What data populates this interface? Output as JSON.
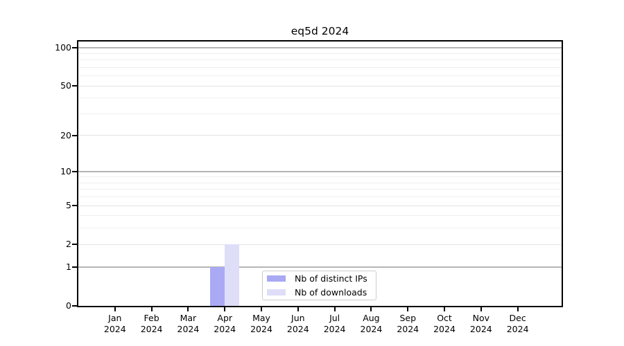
{
  "chart_data": {
    "type": "bar",
    "title": "eq5d 2024",
    "categories": [
      {
        "month": "Jan",
        "year": "2024"
      },
      {
        "month": "Feb",
        "year": "2024"
      },
      {
        "month": "Mar",
        "year": "2024"
      },
      {
        "month": "Apr",
        "year": "2024"
      },
      {
        "month": "May",
        "year": "2024"
      },
      {
        "month": "Jun",
        "year": "2024"
      },
      {
        "month": "Jul",
        "year": "2024"
      },
      {
        "month": "Aug",
        "year": "2024"
      },
      {
        "month": "Sep",
        "year": "2024"
      },
      {
        "month": "Oct",
        "year": "2024"
      },
      {
        "month": "Nov",
        "year": "2024"
      },
      {
        "month": "Dec",
        "year": "2024"
      }
    ],
    "series": [
      {
        "name": "Nb of distinct IPs",
        "color": "#a9a9f4",
        "values": [
          0,
          0,
          0,
          1,
          0,
          0,
          0,
          0,
          0,
          0,
          0,
          0
        ]
      },
      {
        "name": "Nb of downloads",
        "color": "#dedef9",
        "values": [
          0,
          0,
          0,
          2,
          0,
          0,
          0,
          0,
          0,
          0,
          0,
          0
        ]
      }
    ],
    "y_axis": {
      "scale": "log10(1+y)",
      "ticks": [
        0,
        1,
        2,
        5,
        10,
        20,
        50,
        100
      ],
      "ylim": [
        0,
        113
      ],
      "major_gridlines": [
        1,
        10,
        100
      ],
      "mid_gridlines": [
        2,
        5,
        20,
        50
      ],
      "minor_gridlines": [
        3,
        4,
        6,
        7,
        8,
        9,
        30,
        40,
        60,
        70,
        80,
        90
      ]
    },
    "legend_position": "lower center",
    "grid": "horizontal"
  },
  "colors": {
    "background": "#ffffff",
    "axis": "#000000",
    "text": "#000000",
    "gridline_major": "#b5b5b5",
    "gridline_mid": "#e3e3e3",
    "gridline_minor": "#efefef",
    "legend_border": "#cccccc",
    "legend_background": "#ffffff"
  }
}
